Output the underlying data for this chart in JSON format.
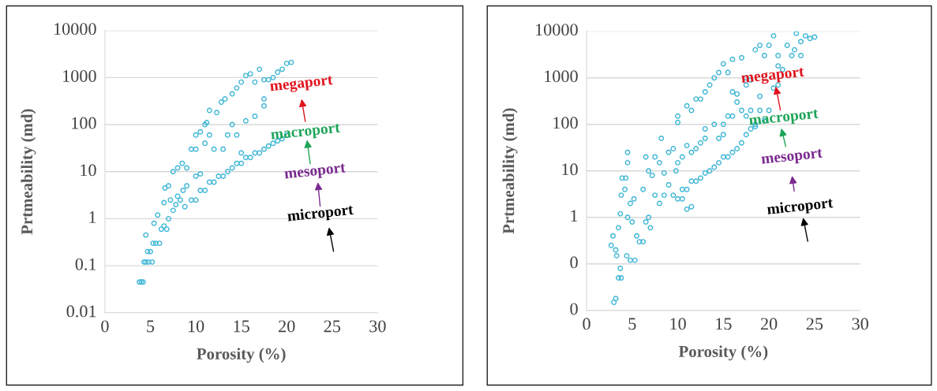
{
  "chart_data": [
    {
      "type": "scatter",
      "xlabel": "Porosity (%)",
      "ylabel": "Prtmeability (md)",
      "log": "y",
      "grid": "y",
      "marker": "circle",
      "xlim": [
        0,
        30
      ],
      "xticks": [
        0,
        5,
        10,
        15,
        20,
        25,
        30
      ],
      "ylim": [
        0.01,
        10000
      ],
      "yticks": [
        0.01,
        0.1,
        1,
        10,
        100,
        1000,
        10000
      ],
      "annotations": [
        "megaport",
        "macroport",
        "mesoport",
        "microport"
      ],
      "series": [
        {
          "color": "#3fb6d6",
          "x": [
            3.8,
            4.0,
            4.2,
            4.3,
            4.5,
            4.8,
            5.2,
            4.5,
            4.7,
            5.3,
            5.6,
            6.0,
            5.4,
            5.8,
            6.2,
            6.5,
            6.8,
            7.0,
            6.6,
            7.2,
            7.5,
            7.8,
            8.0,
            8.3,
            8.6,
            9.0,
            7.5,
            8.0,
            8.5,
            9.0,
            9.5,
            10,
            10,
            10.5,
            10,
            10.5,
            11,
            11.2,
            11.5,
            12,
            11,
            11.5,
            12.3,
            12.8,
            13.2,
            14,
            14.5,
            15,
            15.5,
            16,
            16.5,
            17,
            17.5,
            18,
            18.5,
            19,
            19.5,
            20,
            20.5,
            14,
            14.5,
            15,
            15.5,
            16.5,
            17.5,
            17.5,
            13.5,
            13,
            9.5,
            10,
            10.5,
            11,
            11.5,
            12,
            12.5,
            13,
            13.5,
            14,
            14.5,
            15,
            15.5,
            16,
            16.5,
            17,
            17.5,
            18,
            18.5,
            19,
            19.5,
            20,
            5,
            6.5,
            7,
            8.8
          ],
          "values": [
            0.045,
            0.045,
            0.045,
            0.12,
            0.12,
            0.12,
            0.12,
            0.45,
            0.2,
            0.3,
            0.3,
            0.3,
            0.8,
            1.2,
            0.6,
            0.7,
            0.6,
            1.0,
            4.5,
            2.5,
            1.5,
            2,
            3,
            2.5,
            4,
            5,
            10,
            12,
            15,
            12,
            30,
            30,
            60,
            70,
            8,
            9,
            40,
            110,
            60,
            30,
            100,
            200,
            180,
            300,
            350,
            450,
            600,
            800,
            1100,
            1200,
            800,
            1500,
            900,
            900,
            1000,
            1300,
            1500,
            2000,
            2100,
            100,
            60,
            25,
            120,
            150,
            350,
            250,
            60,
            30,
            2.5,
            2.5,
            4,
            4,
            6,
            6,
            8,
            8,
            10,
            12,
            15,
            15,
            20,
            20,
            25,
            25,
            30,
            35,
            40,
            45,
            50,
            60,
            0.2,
            2.2,
            5,
            1.8
          ]
        }
      ]
    },
    {
      "type": "scatter",
      "xlabel": "Porosity (%)",
      "ylabel": "Prtmeability (md)",
      "log": "y",
      "grid": "y",
      "marker": "circle",
      "xlim": [
        0,
        30
      ],
      "xticks": [
        0,
        5,
        10,
        15,
        20,
        25,
        30
      ],
      "ylim": [
        0.01,
        10000
      ],
      "yticks": [
        {
          "value": 0.01,
          "label": "0"
        },
        {
          "value": 0.1,
          "label": "0"
        },
        1,
        10,
        100,
        1000,
        10000
      ],
      "annotations": [
        "megaport",
        "macroport",
        "mesoport",
        "microport"
      ],
      "series": [
        {
          "color": "#3fb6d6",
          "x": [
            3,
            3.2,
            3.5,
            3.8,
            3.2,
            2.7,
            2.9,
            3.3,
            3.7,
            3.5,
            3.7,
            3.8,
            3.9,
            4.3,
            4.5,
            4.5,
            4.2,
            4.5,
            4.8,
            5,
            5.2,
            4.4,
            4.8,
            5.3,
            5.5,
            5.8,
            6.2,
            6.5,
            6.8,
            7,
            6.2,
            6.8,
            7.2,
            6.5,
            7.5,
            8,
            8.5,
            8.2,
            9,
            9.5,
            9.8,
            7.5,
            8,
            8.5,
            9,
            9.5,
            10,
            10.5,
            10,
            10.5,
            11,
            11.5,
            12,
            12.5,
            13,
            10,
            10,
            11,
            11.5,
            12,
            12.5,
            13,
            13.5,
            14,
            14.5,
            15,
            15.5,
            16,
            17,
            17.5,
            18,
            18.5,
            19,
            19.5,
            20,
            20.5,
            21,
            21.5,
            22,
            22.5,
            23,
            23.5,
            24,
            24.5,
            25,
            22.8,
            23.5,
            21,
            20.5,
            21,
            13,
            14,
            15,
            15.5,
            16,
            16.5,
            17,
            17.5,
            18,
            18.5,
            19,
            19.5,
            20,
            16,
            16.5,
            17.5,
            19,
            15,
            14.5,
            10.5,
            11,
            11.5,
            12,
            12.5,
            13,
            13.5,
            14,
            14.5,
            15,
            15.5,
            16,
            16.5,
            17,
            17.5,
            18,
            18.5,
            11,
            11.5
          ],
          "values": [
            0.015,
            0.018,
            0.05,
            0.05,
            0.2,
            0.25,
            0.4,
            0.15,
            0.08,
            0.6,
            1.2,
            3,
            7,
            7,
            25,
            15,
            4,
            1,
            2,
            0.8,
            2.5,
            0.15,
            0.12,
            0.12,
            0.4,
            0.3,
            0.3,
            0.8,
            1,
            0.6,
            4,
            10,
            8,
            20,
            20,
            15,
            9,
            50,
            25,
            30,
            10,
            3,
            2,
            3,
            5,
            3,
            2.5,
            2.5,
            15,
            20,
            35,
            25,
            30,
            40,
            50,
            110,
            150,
            250,
            200,
            350,
            350,
            500,
            700,
            1000,
            1300,
            2000,
            1300,
            2500,
            2700,
            1000,
            900,
            4000,
            5000,
            3000,
            5000,
            8000,
            3000,
            1500,
            5000,
            3000,
            9000,
            6000,
            8000,
            7000,
            7500,
            4000,
            3000,
            1800,
            600,
            700,
            80,
            100,
            100,
            150,
            150,
            300,
            200,
            150,
            200,
            100,
            200,
            120,
            200,
            500,
            450,
            700,
            400,
            60,
            50,
            4,
            4,
            6,
            6,
            7,
            9,
            10,
            12,
            15,
            20,
            20,
            25,
            30,
            40,
            60,
            80,
            90,
            1.5,
            1.7
          ]
        }
      ]
    }
  ]
}
